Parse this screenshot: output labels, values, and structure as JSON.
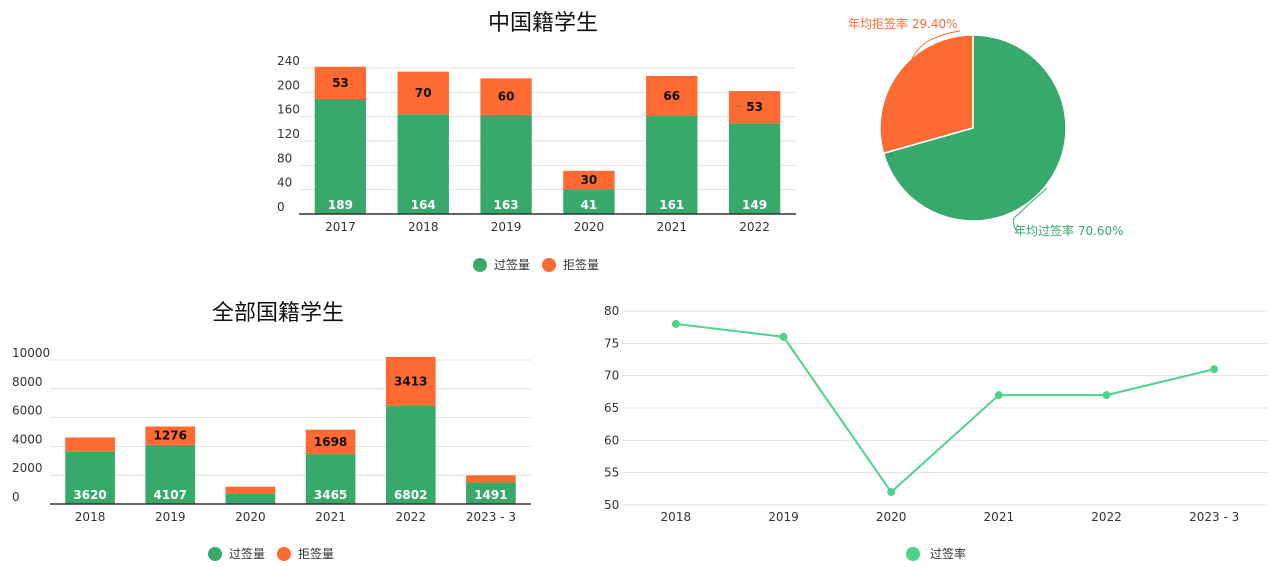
{
  "colors": {
    "pass": "#37a96b",
    "reject": "#fd6b32",
    "line": "#4dd38a"
  },
  "chart_data": [
    {
      "type": "bar",
      "title": "中国籍学生",
      "categories": [
        "2017",
        "2018",
        "2019",
        "2020",
        "2021",
        "2022"
      ],
      "series": [
        {
          "name": "过签量",
          "values": [
            189,
            164,
            163,
            41,
            161,
            149
          ]
        },
        {
          "name": "拒签量",
          "values": [
            53,
            70,
            60,
            30,
            66,
            53
          ]
        }
      ],
      "yticks": [
        "0",
        "40",
        "80",
        "120",
        "160",
        "200",
        "240"
      ],
      "ylim": [
        0,
        240
      ],
      "stacked": true,
      "legend": "bottom"
    },
    {
      "type": "pie",
      "slices": [
        {
          "label": "年均拒签率 29.40%",
          "value": 29.4
        },
        {
          "label": "年均过签率 70.60%",
          "value": 70.6
        }
      ]
    },
    {
      "type": "bar",
      "title": "全部国籍学生",
      "categories": [
        "2018",
        "2019",
        "2020",
        "2021",
        "2022",
        "2023 - 3"
      ],
      "series": [
        {
          "name": "过签量",
          "values": [
            3620,
            4107,
            700,
            3465,
            6802,
            1491
          ],
          "labels": [
            "3620",
            "4107",
            "",
            "3465",
            "6802",
            "1491"
          ]
        },
        {
          "name": "拒签量",
          "values": [
            1000,
            1276,
            500,
            1698,
            3413,
            500
          ],
          "labels": [
            "",
            "1276",
            "",
            "1698",
            "3413",
            ""
          ]
        }
      ],
      "yticks": [
        "0",
        "2000",
        "4000",
        "6000",
        "8000",
        "10000"
      ],
      "ylim": [
        0,
        10000
      ],
      "stacked": true,
      "legend": "bottom"
    },
    {
      "type": "line",
      "categories": [
        "2018",
        "2019",
        "2020",
        "2021",
        "2022",
        "2023 - 3"
      ],
      "series": [
        {
          "name": "过签率",
          "values": [
            78,
            76,
            52,
            67,
            67,
            71
          ]
        }
      ],
      "yticks": [
        "50",
        "55",
        "60",
        "65",
        "70",
        "75",
        "80"
      ],
      "ylim": [
        50,
        80
      ],
      "legend": "bottom"
    }
  ]
}
